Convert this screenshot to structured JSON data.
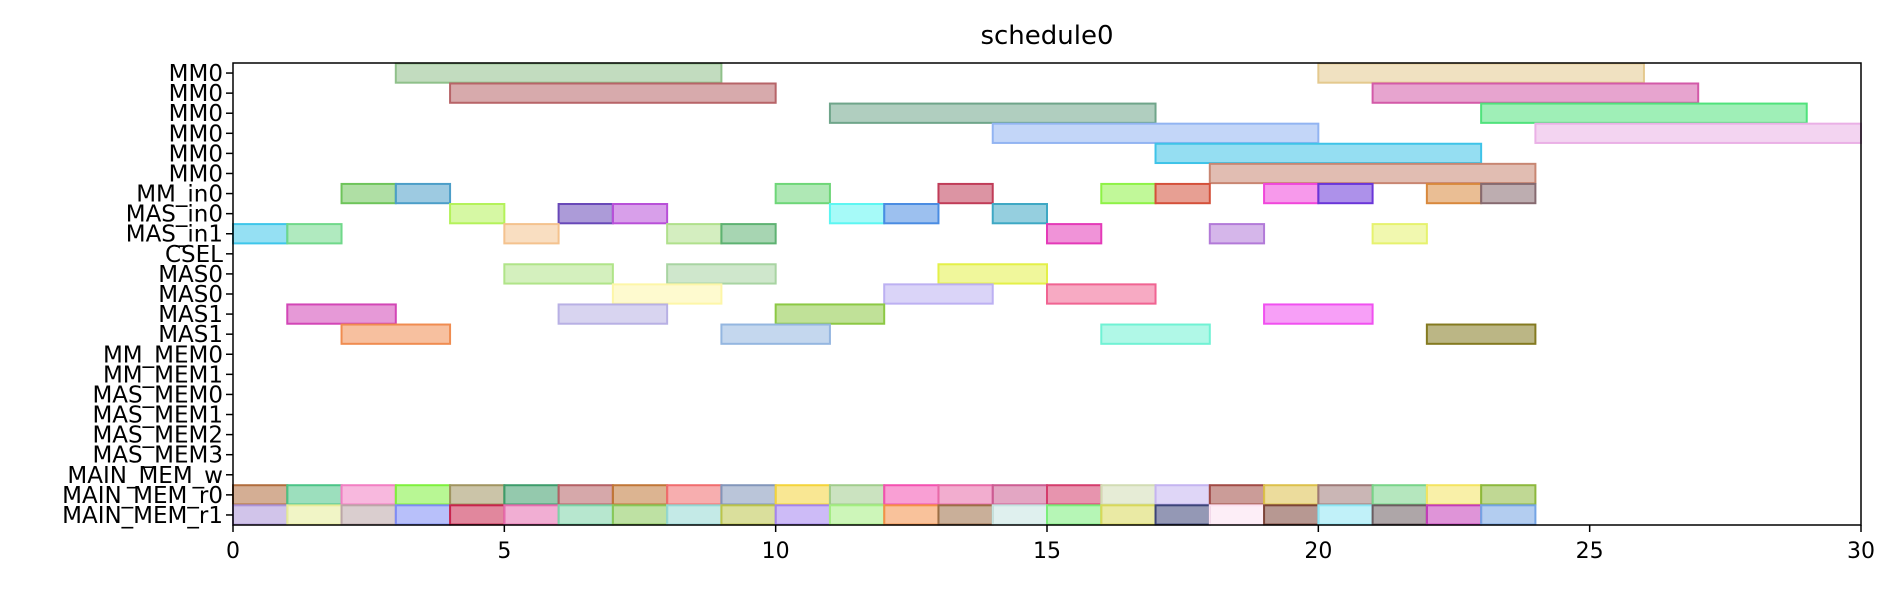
{
  "chart_data": {
    "type": "gantt",
    "title": "schedule0",
    "xlabel": "",
    "ylabel": "",
    "xlim": [
      0,
      30
    ],
    "xticks": [
      0,
      5,
      10,
      15,
      20,
      25,
      30
    ],
    "grid": false,
    "rows": [
      "MM0",
      "MM0",
      "MM0",
      "MM0",
      "MM0",
      "MM0",
      "MM_in0",
      "MAS_in0",
      "MAS_in1",
      "CSEL",
      "MAS0",
      "MAS0",
      "MAS1",
      "MAS1",
      "MM_MEM0",
      "MM_MEM1",
      "MAS_MEM0",
      "MAS_MEM1",
      "MAS_MEM2",
      "MAS_MEM3",
      "MAIN_MEM_w",
      "MAIN_MEM_r0",
      "MAIN_MEM_r1"
    ],
    "tasks": [
      {
        "row": 0,
        "start": 3,
        "end": 9,
        "color": "#8fc08a"
      },
      {
        "row": 0,
        "start": 20,
        "end": 26,
        "color": "#e4c98e"
      },
      {
        "row": 1,
        "start": 4,
        "end": 10,
        "color": "#b76468"
      },
      {
        "row": 1,
        "start": 21,
        "end": 27,
        "color": "#d35aa8"
      },
      {
        "row": 2,
        "start": 11,
        "end": 17,
        "color": "#6fa58a"
      },
      {
        "row": 2,
        "start": 23,
        "end": 29,
        "color": "#50e27c"
      },
      {
        "row": 3,
        "start": 14,
        "end": 20,
        "color": "#92b4f2"
      },
      {
        "row": 3,
        "start": 24,
        "end": 30,
        "color": "#eab0e6"
      },
      {
        "row": 4,
        "start": 17,
        "end": 23,
        "color": "#3ec3e8"
      },
      {
        "row": 5,
        "start": 18,
        "end": 24,
        "color": "#c88672"
      },
      {
        "row": 6,
        "start": 2,
        "end": 3,
        "color": "#6ec45a"
      },
      {
        "row": 6,
        "start": 3,
        "end": 4,
        "color": "#4c9ec8"
      },
      {
        "row": 6,
        "start": 10,
        "end": 11,
        "color": "#6ed678"
      },
      {
        "row": 6,
        "start": 13,
        "end": 14,
        "color": "#c03c58"
      },
      {
        "row": 6,
        "start": 16,
        "end": 17,
        "color": "#8ef246"
      },
      {
        "row": 6,
        "start": 17,
        "end": 18,
        "color": "#d4503a"
      },
      {
        "row": 6,
        "start": 19,
        "end": 20,
        "color": "#f046da"
      },
      {
        "row": 6,
        "start": 20,
        "end": 21,
        "color": "#6a36d8"
      },
      {
        "row": 6,
        "start": 22,
        "end": 23,
        "color": "#d8883c"
      },
      {
        "row": 6,
        "start": 23,
        "end": 24,
        "color": "#866a70"
      },
      {
        "row": 7,
        "start": 4,
        "end": 5,
        "color": "#b4f25a"
      },
      {
        "row": 7,
        "start": 6,
        "end": 7,
        "color": "#6848b8"
      },
      {
        "row": 7,
        "start": 7,
        "end": 8,
        "color": "#b850d8"
      },
      {
        "row": 7,
        "start": 11,
        "end": 12,
        "color": "#5cf6f2"
      },
      {
        "row": 7,
        "start": 12,
        "end": 13,
        "color": "#4a8ce2"
      },
      {
        "row": 7,
        "start": 14,
        "end": 15,
        "color": "#3ea8c4"
      },
      {
        "row": 8,
        "start": 0,
        "end": 1,
        "color": "#3ec6ea"
      },
      {
        "row": 8,
        "start": 1,
        "end": 2,
        "color": "#70d88a"
      },
      {
        "row": 8,
        "start": 5,
        "end": 6,
        "color": "#f4c28e"
      },
      {
        "row": 8,
        "start": 8,
        "end": 9,
        "color": "#b0e08c"
      },
      {
        "row": 8,
        "start": 9,
        "end": 10,
        "color": "#5eb272"
      },
      {
        "row": 8,
        "start": 15,
        "end": 16,
        "color": "#e43ab8"
      },
      {
        "row": 8,
        "start": 18,
        "end": 19,
        "color": "#b27ad8"
      },
      {
        "row": 8,
        "start": 21,
        "end": 22,
        "color": "#e6f26e"
      },
      {
        "row": 10,
        "start": 5,
        "end": 7,
        "color": "#b0e488"
      },
      {
        "row": 10,
        "start": 8,
        "end": 10,
        "color": "#a8d4a2"
      },
      {
        "row": 10,
        "start": 13,
        "end": 15,
        "color": "#e4f048"
      },
      {
        "row": 11,
        "start": 7,
        "end": 9,
        "color": "#fdf6a8"
      },
      {
        "row": 11,
        "start": 12,
        "end": 14,
        "color": "#bcb0f2"
      },
      {
        "row": 11,
        "start": 15,
        "end": 17,
        "color": "#f06492"
      },
      {
        "row": 12,
        "start": 1,
        "end": 3,
        "color": "#d246b6"
      },
      {
        "row": 12,
        "start": 6,
        "end": 8,
        "color": "#b8b0e4"
      },
      {
        "row": 12,
        "start": 10,
        "end": 12,
        "color": "#8cc844"
      },
      {
        "row": 12,
        "start": 19,
        "end": 21,
        "color": "#f050f0"
      },
      {
        "row": 13,
        "start": 2,
        "end": 4,
        "color": "#f08c50"
      },
      {
        "row": 13,
        "start": 9,
        "end": 11,
        "color": "#94b6e0"
      },
      {
        "row": 13,
        "start": 16,
        "end": 18,
        "color": "#70f2d4"
      },
      {
        "row": 13,
        "start": 22,
        "end": 24,
        "color": "#847a20"
      },
      {
        "row": 21,
        "start": 0,
        "end": 1,
        "color": "#b06c3c"
      },
      {
        "row": 21,
        "start": 1,
        "end": 2,
        "color": "#4ac486"
      },
      {
        "row": 21,
        "start": 2,
        "end": 3,
        "color": "#f27ec2"
      },
      {
        "row": 21,
        "start": 3,
        "end": 4,
        "color": "#7ef03c"
      },
      {
        "row": 21,
        "start": 4,
        "end": 5,
        "color": "#a09460"
      },
      {
        "row": 21,
        "start": 5,
        "end": 6,
        "color": "#3c9c6a"
      },
      {
        "row": 21,
        "start": 6,
        "end": 7,
        "color": "#b46064"
      },
      {
        "row": 21,
        "start": 7,
        "end": 8,
        "color": "#c07636"
      },
      {
        "row": 21,
        "start": 8,
        "end": 9,
        "color": "#f06c6e"
      },
      {
        "row": 21,
        "start": 9,
        "end": 10,
        "color": "#8296ba"
      },
      {
        "row": 21,
        "start": 10,
        "end": 11,
        "color": "#f4d43a"
      },
      {
        "row": 21,
        "start": 11,
        "end": 12,
        "color": "#a0cc8c"
      },
      {
        "row": 21,
        "start": 12,
        "end": 13,
        "color": "#f450b0"
      },
      {
        "row": 21,
        "start": 13,
        "end": 14,
        "color": "#e86aa8"
      },
      {
        "row": 21,
        "start": 14,
        "end": 15,
        "color": "#cc5c92"
      },
      {
        "row": 21,
        "start": 15,
        "end": 16,
        "color": "#d43c6c"
      },
      {
        "row": 21,
        "start": 16,
        "end": 17,
        "color": "#d2dcb4"
      },
      {
        "row": 21,
        "start": 17,
        "end": 18,
        "color": "#c4b4f0"
      },
      {
        "row": 21,
        "start": 18,
        "end": 19,
        "color": "#a04a44"
      },
      {
        "row": 21,
        "start": 19,
        "end": 20,
        "color": "#dcc04a"
      },
      {
        "row": 21,
        "start": 20,
        "end": 21,
        "color": "#9e7a78"
      },
      {
        "row": 21,
        "start": 21,
        "end": 22,
        "color": "#78d488"
      },
      {
        "row": 21,
        "start": 22,
        "end": 23,
        "color": "#f4e460"
      },
      {
        "row": 21,
        "start": 23,
        "end": 24,
        "color": "#8cb83c"
      },
      {
        "row": 22,
        "start": 0,
        "end": 1,
        "color": "#ac94d8"
      },
      {
        "row": 22,
        "start": 1,
        "end": 2,
        "color": "#e6ec98"
      },
      {
        "row": 22,
        "start": 2,
        "end": 3,
        "color": "#bca6a8"
      },
      {
        "row": 22,
        "start": 3,
        "end": 4,
        "color": "#7e8cf6"
      },
      {
        "row": 22,
        "start": 4,
        "end": 5,
        "color": "#c8244c"
      },
      {
        "row": 22,
        "start": 5,
        "end": 6,
        "color": "#e66cae"
      },
      {
        "row": 22,
        "start": 6,
        "end": 7,
        "color": "#7cd4a8"
      },
      {
        "row": 22,
        "start": 7,
        "end": 8,
        "color": "#88c858"
      },
      {
        "row": 22,
        "start": 8,
        "end": 9,
        "color": "#94d8d4"
      },
      {
        "row": 22,
        "start": 9,
        "end": 10,
        "color": "#bcc44a"
      },
      {
        "row": 22,
        "start": 10,
        "end": 11,
        "color": "#a484f0"
      },
      {
        "row": 22,
        "start": 11,
        "end": 12,
        "color": "#a4ee80"
      },
      {
        "row": 22,
        "start": 12,
        "end": 13,
        "color": "#f49048"
      },
      {
        "row": 22,
        "start": 13,
        "end": 14,
        "color": "#9c6e46"
      },
      {
        "row": 22,
        "start": 14,
        "end": 15,
        "color": "#c4e4e0"
      },
      {
        "row": 22,
        "start": 15,
        "end": 16,
        "color": "#7aee7a"
      },
      {
        "row": 22,
        "start": 16,
        "end": 17,
        "color": "#d8d85a"
      },
      {
        "row": 22,
        "start": 17,
        "end": 18,
        "color": "#3c4478"
      },
      {
        "row": 22,
        "start": 18,
        "end": 19,
        "color": "#fce0f0"
      },
      {
        "row": 22,
        "start": 19,
        "end": 20,
        "color": "#7c4438"
      },
      {
        "row": 22,
        "start": 20,
        "end": 21,
        "color": "#8ee6f4"
      },
      {
        "row": 22,
        "start": 21,
        "end": 22,
        "color": "#6c5c60"
      },
      {
        "row": 22,
        "start": 22,
        "end": 23,
        "color": "#c43cb8"
      },
      {
        "row": 22,
        "start": 23,
        "end": 24,
        "color": "#74a4e4"
      }
    ]
  }
}
